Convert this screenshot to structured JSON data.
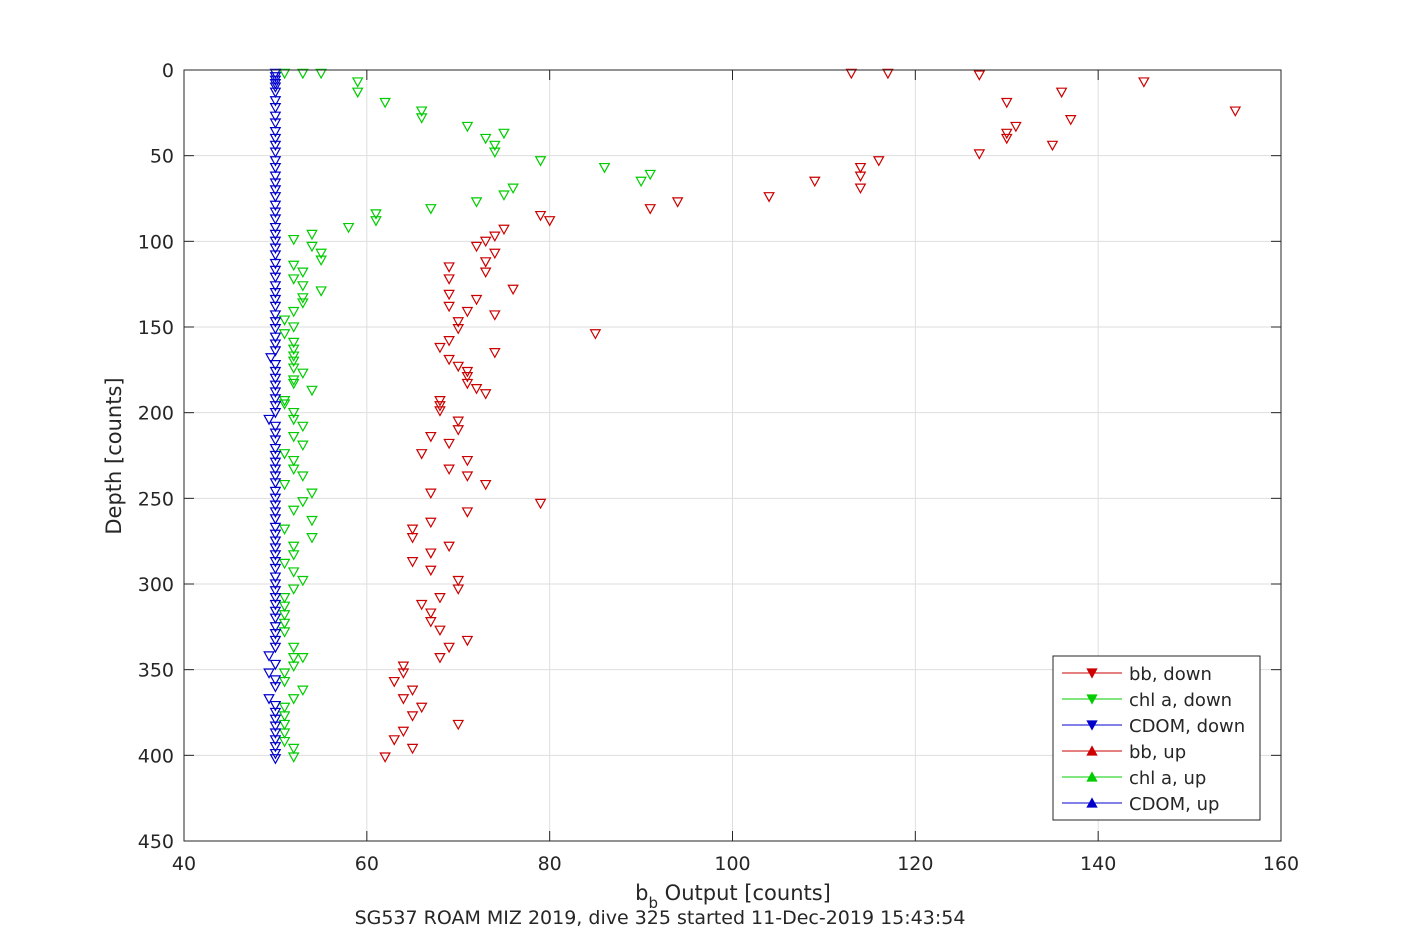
{
  "chart_data": {
    "type": "scatter",
    "title": "",
    "xlabel_main": "b",
    "xlabel_sub": "b",
    "xlabel_rest": " Output [counts]",
    "ylabel": "Depth [counts]",
    "caption": "SG537 ROAM MIZ 2019, dive 325 started 11-Dec-2019 15:43:54",
    "xlim": [
      40,
      160
    ],
    "ylim": [
      0,
      450
    ],
    "y_reversed": true,
    "xticks": [
      "40",
      "60",
      "80",
      "100",
      "120",
      "140",
      "160"
    ],
    "yticks": [
      "0",
      "50",
      "100",
      "150",
      "200",
      "250",
      "300",
      "350",
      "400",
      "450"
    ],
    "grid": true,
    "legend_position": "lower-right",
    "series": [
      {
        "name": "bb, down",
        "color": "#cc0000",
        "marker": "triangle-down",
        "points": [
          [
            113,
            2
          ],
          [
            117,
            2
          ],
          [
            127,
            3
          ],
          [
            145,
            7
          ],
          [
            136,
            13
          ],
          [
            130,
            19
          ],
          [
            155,
            24
          ],
          [
            137,
            29
          ],
          [
            131,
            33
          ],
          [
            130,
            37
          ],
          [
            130,
            40
          ],
          [
            135,
            44
          ],
          [
            127,
            49
          ],
          [
            116,
            53
          ],
          [
            114,
            57
          ],
          [
            114,
            62
          ],
          [
            109,
            65
          ],
          [
            114,
            69
          ],
          [
            104,
            74
          ],
          [
            94,
            77
          ],
          [
            91,
            81
          ],
          [
            79,
            85
          ],
          [
            80,
            88
          ],
          [
            75,
            93
          ],
          [
            74,
            97
          ],
          [
            73,
            100
          ],
          [
            72,
            103
          ],
          [
            74,
            107
          ],
          [
            73,
            112
          ],
          [
            69,
            115
          ],
          [
            73,
            118
          ],
          [
            69,
            122
          ],
          [
            76,
            128
          ],
          [
            69,
            131
          ],
          [
            72,
            134
          ],
          [
            69,
            138
          ],
          [
            71,
            141
          ],
          [
            74,
            143
          ],
          [
            70,
            147
          ],
          [
            70,
            151
          ],
          [
            85,
            154
          ],
          [
            68,
            162
          ],
          [
            69,
            158
          ],
          [
            74,
            165
          ],
          [
            69,
            169
          ],
          [
            70,
            173
          ],
          [
            71,
            176
          ],
          [
            71,
            179
          ],
          [
            71,
            183
          ],
          [
            72,
            186
          ],
          [
            73,
            189
          ],
          [
            68,
            193
          ],
          [
            68,
            196
          ],
          [
            68,
            199
          ],
          [
            70,
            205
          ],
          [
            70,
            210
          ],
          [
            67,
            214
          ],
          [
            69,
            218
          ],
          [
            66,
            224
          ],
          [
            71,
            228
          ],
          [
            69,
            233
          ],
          [
            71,
            237
          ],
          [
            73,
            242
          ],
          [
            67,
            247
          ],
          [
            79,
            253
          ],
          [
            71,
            258
          ],
          [
            67,
            264
          ],
          [
            65,
            268
          ],
          [
            65,
            273
          ],
          [
            69,
            278
          ],
          [
            67,
            282
          ],
          [
            65,
            287
          ],
          [
            67,
            292
          ],
          [
            70,
            298
          ],
          [
            70,
            303
          ],
          [
            68,
            308
          ],
          [
            66,
            312
          ],
          [
            67,
            317
          ],
          [
            67,
            322
          ],
          [
            68,
            327
          ],
          [
            71,
            333
          ],
          [
            69,
            337
          ],
          [
            68,
            343
          ],
          [
            64,
            348
          ],
          [
            64,
            352
          ],
          [
            63,
            357
          ],
          [
            65,
            362
          ],
          [
            64,
            367
          ],
          [
            66,
            372
          ],
          [
            65,
            377
          ],
          [
            70,
            382
          ],
          [
            64,
            386
          ],
          [
            63,
            391
          ],
          [
            65,
            396
          ],
          [
            62,
            401
          ]
        ]
      },
      {
        "name": "chl a, down",
        "color": "#00cc00",
        "marker": "triangle-down",
        "points": [
          [
            51,
            2
          ],
          [
            53,
            2
          ],
          [
            55,
            2
          ],
          [
            59,
            7
          ],
          [
            59,
            13
          ],
          [
            62,
            19
          ],
          [
            66,
            24
          ],
          [
            66,
            28
          ],
          [
            71,
            33
          ],
          [
            75,
            37
          ],
          [
            73,
            40
          ],
          [
            74,
            44
          ],
          [
            74,
            48
          ],
          [
            79,
            53
          ],
          [
            86,
            57
          ],
          [
            91,
            61
          ],
          [
            90,
            65
          ],
          [
            76,
            69
          ],
          [
            75,
            73
          ],
          [
            72,
            77
          ],
          [
            67,
            81
          ],
          [
            61,
            84
          ],
          [
            61,
            88
          ],
          [
            58,
            92
          ],
          [
            54,
            96
          ],
          [
            52,
            99
          ],
          [
            54,
            103
          ],
          [
            55,
            107
          ],
          [
            55,
            111
          ],
          [
            52,
            114
          ],
          [
            53,
            118
          ],
          [
            52,
            122
          ],
          [
            53,
            126
          ],
          [
            55,
            129
          ],
          [
            53,
            133
          ],
          [
            53,
            136
          ],
          [
            52,
            141
          ],
          [
            51,
            146
          ],
          [
            52,
            150
          ],
          [
            51,
            154
          ],
          [
            52,
            159
          ],
          [
            52,
            163
          ],
          [
            52,
            167
          ],
          [
            52,
            170
          ],
          [
            52,
            174
          ],
          [
            53,
            177
          ],
          [
            52,
            181
          ],
          [
            52,
            183
          ],
          [
            54,
            187
          ],
          [
            51,
            193
          ],
          [
            51,
            195
          ],
          [
            52,
            200
          ],
          [
            52,
            204
          ],
          [
            53,
            208
          ],
          [
            52,
            214
          ],
          [
            53,
            219
          ],
          [
            51,
            224
          ],
          [
            52,
            228
          ],
          [
            52,
            233
          ],
          [
            53,
            237
          ],
          [
            51,
            242
          ],
          [
            54,
            247
          ],
          [
            53,
            252
          ],
          [
            52,
            257
          ],
          [
            54,
            263
          ],
          [
            51,
            268
          ],
          [
            54,
            273
          ],
          [
            52,
            278
          ],
          [
            52,
            283
          ],
          [
            51,
            288
          ],
          [
            52,
            293
          ],
          [
            53,
            298
          ],
          [
            52,
            303
          ],
          [
            51,
            308
          ],
          [
            51,
            313
          ],
          [
            51,
            318
          ],
          [
            51,
            323
          ],
          [
            51,
            328
          ],
          [
            52,
            337
          ],
          [
            52,
            343
          ],
          [
            53,
            343
          ],
          [
            52,
            348
          ],
          [
            51,
            352
          ],
          [
            51,
            357
          ],
          [
            53,
            362
          ],
          [
            52,
            367
          ],
          [
            51,
            372
          ],
          [
            51,
            377
          ],
          [
            51,
            382
          ],
          [
            51,
            387
          ],
          [
            51,
            392
          ],
          [
            52,
            396
          ],
          [
            52,
            401
          ]
        ]
      },
      {
        "name": "CDOM, down",
        "color": "#0000cc",
        "marker": "triangle-down",
        "points": [
          [
            50,
            2
          ],
          [
            50,
            4
          ],
          [
            50,
            6
          ],
          [
            50,
            8
          ],
          [
            50,
            10
          ],
          [
            50,
            13
          ],
          [
            50,
            18
          ],
          [
            50,
            22
          ],
          [
            50,
            27
          ],
          [
            50,
            31
          ],
          [
            50,
            36
          ],
          [
            50,
            40
          ],
          [
            50,
            44
          ],
          [
            50,
            48
          ],
          [
            50,
            53
          ],
          [
            50,
            57
          ],
          [
            50,
            62
          ],
          [
            50,
            66
          ],
          [
            50,
            70
          ],
          [
            50,
            74
          ],
          [
            50,
            79
          ],
          [
            50,
            83
          ],
          [
            50,
            87
          ],
          [
            50,
            92
          ],
          [
            50,
            96
          ],
          [
            50,
            100
          ],
          [
            50,
            104
          ],
          [
            50,
            108
          ],
          [
            50,
            113
          ],
          [
            50,
            117
          ],
          [
            50,
            121
          ],
          [
            50,
            126
          ],
          [
            50,
            130
          ],
          [
            50,
            134
          ],
          [
            50,
            138
          ],
          [
            50,
            143
          ],
          [
            50,
            147
          ],
          [
            50,
            151
          ],
          [
            50,
            156
          ],
          [
            50,
            160
          ],
          [
            50,
            164
          ],
          [
            49.5,
            168
          ],
          [
            50,
            172
          ],
          [
            50,
            176
          ],
          [
            50,
            180
          ],
          [
            50,
            184
          ],
          [
            50,
            188
          ],
          [
            50,
            192
          ],
          [
            50,
            196
          ],
          [
            49.3,
            204
          ],
          [
            50,
            200
          ],
          [
            50,
            208
          ],
          [
            50,
            212
          ],
          [
            50,
            216
          ],
          [
            50,
            221
          ],
          [
            50,
            225
          ],
          [
            50,
            229
          ],
          [
            50,
            233
          ],
          [
            50,
            237
          ],
          [
            50,
            241
          ],
          [
            50,
            246
          ],
          [
            50,
            250
          ],
          [
            50,
            254
          ],
          [
            50,
            258
          ],
          [
            50,
            262
          ],
          [
            50,
            267
          ],
          [
            50,
            271
          ],
          [
            50,
            275
          ],
          [
            50,
            279
          ],
          [
            50,
            283
          ],
          [
            50,
            287
          ],
          [
            50,
            291
          ],
          [
            50,
            296
          ],
          [
            50,
            300
          ],
          [
            50,
            304
          ],
          [
            50,
            308
          ],
          [
            50,
            312
          ],
          [
            50,
            316
          ],
          [
            50,
            320
          ],
          [
            50,
            325
          ],
          [
            50,
            329
          ],
          [
            50,
            333
          ],
          [
            50,
            337
          ],
          [
            49.3,
            342
          ],
          [
            50,
            347
          ],
          [
            49.3,
            352
          ],
          [
            50,
            356
          ],
          [
            50,
            360
          ],
          [
            49.3,
            367
          ],
          [
            50,
            371
          ],
          [
            50,
            375
          ],
          [
            50,
            379
          ],
          [
            50,
            383
          ],
          [
            50,
            387
          ],
          [
            50,
            391
          ],
          [
            50,
            395
          ],
          [
            50,
            399
          ],
          [
            50,
            402
          ]
        ]
      },
      {
        "name": "bb, up",
        "color": "#cc0000",
        "marker": "triangle-up",
        "points": []
      },
      {
        "name": "chl a, up",
        "color": "#00cc00",
        "marker": "triangle-up",
        "points": []
      },
      {
        "name": "CDOM, up",
        "color": "#0000cc",
        "marker": "triangle-up",
        "points": []
      }
    ]
  }
}
